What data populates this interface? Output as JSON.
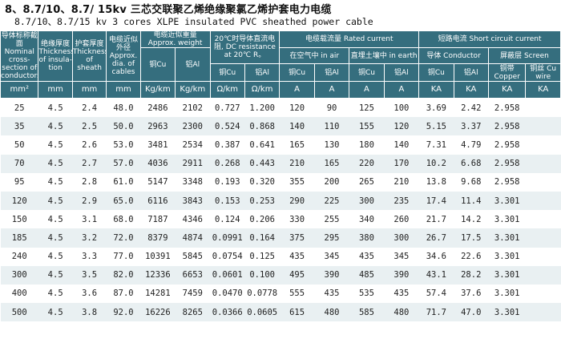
{
  "title": {
    "line1": "8、8.7/10、8.7/ 15kv  三芯交联聚乙烯绝缘聚氯乙烯护套电力电缆",
    "line2": "8.7/10、8.7/15 kv 3 cores XLPE insulated PVC sheathed power cable"
  },
  "headers": {
    "nominal": "导体标称截面 Nominal cross-section of conductors",
    "insulation": "绝缘厚度 Thickness of insula-tion",
    "sheath": "护套厚度 Thickness of sheath",
    "dia": "电缆近似外径 Approx. dia. of cables",
    "weight": "电缆近似重量 Approx. weight",
    "weight_cu": "铜Cu",
    "weight_al": "铝Al",
    "dcres": "20℃时导体直流电阻, DC resistance at 20℃ R。",
    "dcres_cu": "铜Cu",
    "dcres_al": "铝Al",
    "rated": "电缆载流量 Rated current",
    "inair": "在空气中 in air",
    "inearth": "直埋土壤中 in earth",
    "air_cu": "铜Cu",
    "air_al": "铝Al",
    "earth_cu": "铜Cu",
    "earth_al": "铝Al",
    "short": "短路电流 Short circuit current",
    "conductor": "导体 Conductor",
    "screen": "屏蔽层 Screen",
    "sc_cu": "铜Cu",
    "sc_al": "铝Al",
    "copper": "铜带 Copper",
    "cuwire": "铜丝 Cu wire"
  },
  "units": [
    "mm²",
    "mm",
    "mm",
    "mm",
    "Kg/km",
    "Kg/km",
    "Ω/km",
    "Ω/km",
    "A",
    "A",
    "A",
    "A",
    "KA",
    "KA",
    "KA",
    "KA"
  ],
  "rows": [
    [
      "25",
      "4.5",
      "2.4",
      "48.0",
      "2486",
      "2102",
      "0.727",
      "1.200",
      "120",
      "90",
      "125",
      "100",
      "3.69",
      "2.42",
      "2.958",
      ""
    ],
    [
      "35",
      "4.5",
      "2.5",
      "50.0",
      "2963",
      "2300",
      "0.524",
      "0.868",
      "140",
      "110",
      "155",
      "120",
      "5.15",
      "3.37",
      "2.958",
      ""
    ],
    [
      "50",
      "4.5",
      "2.6",
      "53.0",
      "3481",
      "2534",
      "0.387",
      "0.641",
      "165",
      "130",
      "180",
      "140",
      "7.31",
      "4.79",
      "2.958",
      ""
    ],
    [
      "70",
      "4.5",
      "2.7",
      "57.0",
      "4036",
      "2911",
      "0.268",
      "0.443",
      "210",
      "165",
      "220",
      "170",
      "10.2",
      "6.68",
      "2.958",
      ""
    ],
    [
      "95",
      "4.5",
      "2.8",
      "61.0",
      "5147",
      "3348",
      "0.193",
      "0.320",
      "355",
      "200",
      "265",
      "210",
      "13.8",
      "9.68",
      "2.958",
      ""
    ],
    [
      "120",
      "4.5",
      "2.9",
      "65.0",
      "6116",
      "3843",
      "0.153",
      "0.253",
      "290",
      "225",
      "300",
      "235",
      "17.4",
      "11.4",
      "3.301",
      ""
    ],
    [
      "150",
      "4.5",
      "3.1",
      "68.0",
      "7187",
      "4346",
      "0.124",
      "0.206",
      "330",
      "255",
      "340",
      "260",
      "21.7",
      "14.2",
      "3.301",
      ""
    ],
    [
      "185",
      "4.5",
      "3.2",
      "72.0",
      "8379",
      "4874",
      "0.0991",
      "0.164",
      "375",
      "295",
      "380",
      "300",
      "26.7",
      "17.5",
      "3.301",
      ""
    ],
    [
      "240",
      "4.5",
      "3.3",
      "77.0",
      "10391",
      "5845",
      "0.0754",
      "0.125",
      "435",
      "345",
      "435",
      "345",
      "34.6",
      "22.6",
      "3.301",
      ""
    ],
    [
      "300",
      "4.5",
      "3.5",
      "82.0",
      "12336",
      "6653",
      "0.0601",
      "0.100",
      "495",
      "390",
      "485",
      "390",
      "43.1",
      "28.2",
      "3.301",
      ""
    ],
    [
      "400",
      "4.5",
      "3.6",
      "87.0",
      "14281",
      "7459",
      "0.0470",
      "0.0778",
      "555",
      "435",
      "535",
      "435",
      "57.4",
      "37.6",
      "3.301",
      ""
    ],
    [
      "500",
      "4.5",
      "3.8",
      "92.0",
      "16226",
      "8265",
      "0.0366",
      "0.0605",
      "615",
      "480",
      "585",
      "480",
      "71.7",
      "47.0",
      "3.301",
      ""
    ]
  ]
}
